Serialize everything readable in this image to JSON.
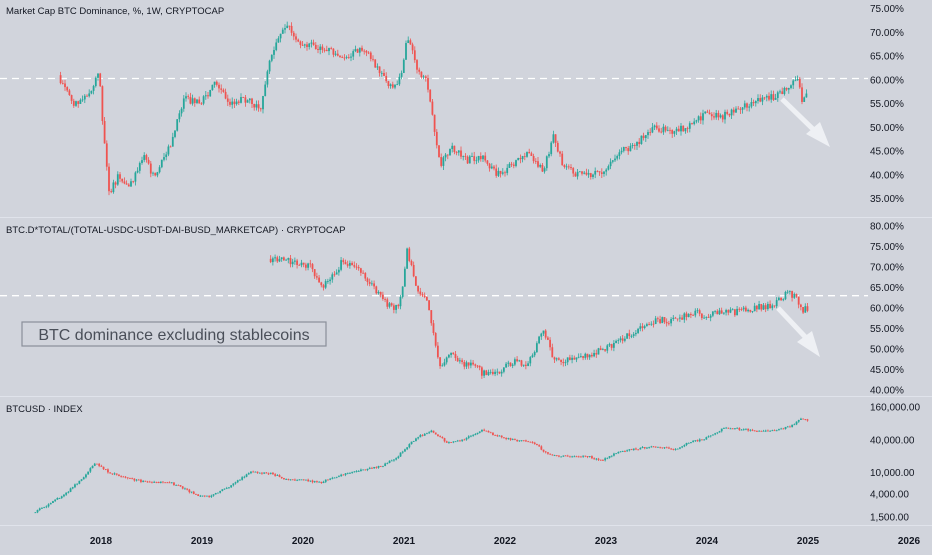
{
  "colors": {
    "background": "#d1d4dc",
    "up": "#26a69a",
    "down": "#ef5350",
    "axis_text": "#131722",
    "divider": "#e0e3eb",
    "reference_line": "#ffffff",
    "arrow": "#eef0f4"
  },
  "panes": [
    {
      "title": "Market Cap BTC Dominance, %, 1W, CRYPTOCAP",
      "y_ticks": [
        "75.00%",
        "70.00%",
        "65.00%",
        "60.00%",
        "55.00%",
        "50.00%",
        "45.00%",
        "40.00%",
        "35.00%"
      ]
    },
    {
      "title": "BTC.D*TOTAL/(TOTAL-USDC-USDT-DAI-BUSD_MARKETCAP) · CRYPTOCAP",
      "y_ticks": [
        "80.00%",
        "75.00%",
        "70.00%",
        "65.00%",
        "60.00%",
        "55.00%",
        "50.00%",
        "45.00%",
        "40.00%"
      ],
      "annotation": "BTC dominance excluding stablecoins"
    },
    {
      "title": "BTCUSD · INDEX",
      "y_ticks": [
        "160,000.00",
        "40,000.00",
        "10,000.00",
        "4,000.00",
        "1,500.00"
      ]
    }
  ],
  "x_ticks": [
    "2018",
    "2019",
    "2020",
    "2021",
    "2022",
    "2023",
    "2024",
    "2025",
    "2026"
  ],
  "chart_data": [
    {
      "type": "candlestick",
      "title": "Market Cap BTC Dominance, %, 1W, CRYPTOCAP",
      "unit": "%",
      "ylim": [
        33,
        76
      ],
      "reference_line": 60.3,
      "x": [
        2017.6,
        2017.75,
        2017.9,
        2018.0,
        2018.05,
        2018.1,
        2018.2,
        2018.3,
        2018.45,
        2018.55,
        2018.7,
        2018.85,
        2019.0,
        2019.15,
        2019.3,
        2019.45,
        2019.6,
        2019.7,
        2019.85,
        2020.0,
        2020.15,
        2020.3,
        2020.45,
        2020.6,
        2020.75,
        2020.9,
        2021.0,
        2021.05,
        2021.15,
        2021.25,
        2021.38,
        2021.5,
        2021.65,
        2021.8,
        2021.95,
        2022.1,
        2022.25,
        2022.4,
        2022.5,
        2022.6,
        2022.75,
        2022.9,
        2023.0,
        2023.15,
        2023.3,
        2023.5,
        2023.7,
        2023.9,
        2024.0,
        2024.15,
        2024.3,
        2024.45,
        2024.6,
        2024.75,
        2024.85,
        2024.92,
        2024.97,
        2025.0
      ],
      "values": [
        61,
        55,
        57,
        62,
        48,
        36,
        40,
        37,
        44,
        39,
        46,
        56,
        55,
        59,
        55,
        56,
        54,
        65,
        72,
        68,
        67,
        66,
        64,
        67,
        63,
        58,
        61,
        70,
        62,
        60,
        42,
        46,
        43,
        44,
        40,
        42,
        45,
        41,
        48,
        42,
        40,
        40,
        41,
        45,
        46,
        50,
        49,
        51,
        53,
        52,
        54,
        55,
        56,
        57,
        59,
        61,
        55,
        57
      ]
    },
    {
      "type": "candlestick",
      "title": "BTC.D*TOTAL/(TOTAL-USDC-USDT-DAI-BUSD_MARKETCAP) · CRYPTOCAP",
      "unit": "%",
      "ylim": [
        39,
        80.5
      ],
      "reference_line": 63,
      "x": [
        2019.68,
        2019.8,
        2019.95,
        2020.1,
        2020.2,
        2020.3,
        2020.4,
        2020.55,
        2020.65,
        2020.75,
        2020.85,
        2020.95,
        2021.0,
        2021.05,
        2021.15,
        2021.25,
        2021.38,
        2021.5,
        2021.6,
        2021.7,
        2021.8,
        2021.95,
        2022.1,
        2022.25,
        2022.4,
        2022.5,
        2022.6,
        2022.75,
        2022.9,
        2023.0,
        2023.15,
        2023.3,
        2023.5,
        2023.7,
        2023.9,
        2024.0,
        2024.15,
        2024.3,
        2024.5,
        2024.7,
        2024.83,
        2024.92,
        2024.97,
        2025.0
      ],
      "values": [
        72,
        72,
        71,
        70,
        65,
        67,
        71,
        70,
        67,
        64,
        61,
        60,
        63,
        74,
        65,
        62,
        45,
        49,
        46,
        47,
        44,
        44,
        47,
        46,
        55,
        48,
        47,
        48,
        49,
        50,
        52,
        54,
        57,
        57,
        59,
        58,
        59,
        59,
        60,
        61,
        64,
        62,
        58,
        60
      ]
    },
    {
      "type": "candlestick",
      "title": "BTCUSD · INDEX",
      "scale": "log",
      "ylim": [
        1200,
        200000
      ],
      "x": [
        2017.35,
        2017.5,
        2017.7,
        2017.85,
        2017.96,
        2018.1,
        2018.3,
        2018.5,
        2018.7,
        2018.85,
        2018.97,
        2019.1,
        2019.3,
        2019.5,
        2019.7,
        2019.85,
        2020.0,
        2020.2,
        2020.4,
        2020.6,
        2020.8,
        2020.95,
        2021.05,
        2021.15,
        2021.3,
        2021.45,
        2021.6,
        2021.8,
        2021.95,
        2022.1,
        2022.3,
        2022.45,
        2022.6,
        2022.85,
        2022.97,
        2023.15,
        2023.3,
        2023.5,
        2023.7,
        2023.85,
        2024.0,
        2024.2,
        2024.4,
        2024.6,
        2024.75,
        2024.85,
        2024.95,
        2025.0
      ],
      "values": [
        1800,
        2500,
        4500,
        8000,
        15000,
        10000,
        7500,
        6500,
        6500,
        5000,
        3700,
        3600,
        5500,
        10000,
        9500,
        7500,
        7200,
        6500,
        9000,
        11000,
        13000,
        19000,
        29000,
        45000,
        58000,
        35000,
        40000,
        60000,
        47000,
        40000,
        36000,
        21000,
        20000,
        19500,
        16500,
        24000,
        27000,
        30000,
        26500,
        36000,
        42000,
        67000,
        62000,
        58000,
        63000,
        70000,
        95000,
        94000
      ]
    }
  ]
}
